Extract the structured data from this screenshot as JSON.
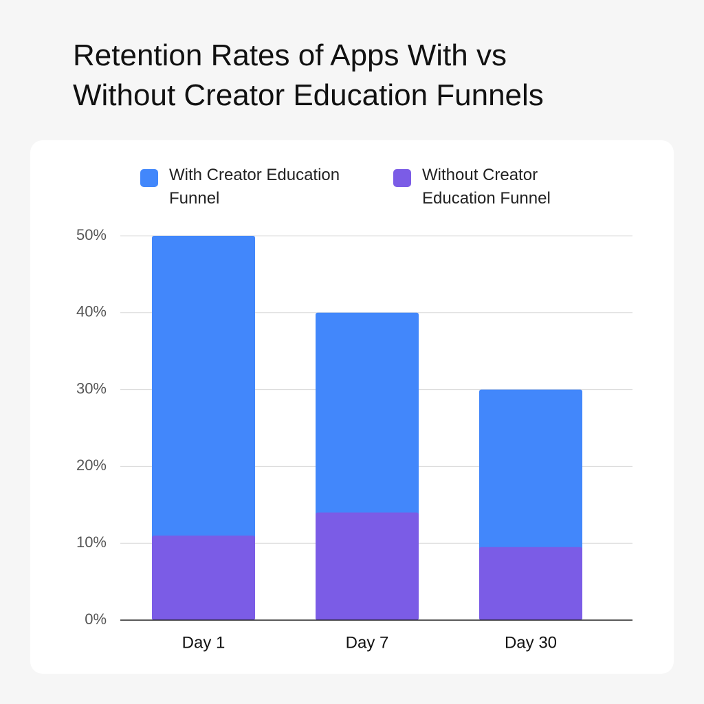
{
  "chart_data": {
    "type": "bar",
    "title": "Retention Rates of Apps With vs Without Creator Education Funnels",
    "categories": [
      "Day 1",
      "Day 7",
      "Day 30"
    ],
    "series": [
      {
        "name": "With Creator Education Funnel",
        "color": "#4287fb",
        "values": [
          50,
          40,
          30
        ]
      },
      {
        "name": "Without Creator Education Funnel",
        "color": "#7b5ce6",
        "values": [
          11,
          14,
          9.5
        ]
      }
    ],
    "ylim": [
      0,
      50
    ],
    "yticks": [
      {
        "value": 0,
        "label": "0%"
      },
      {
        "value": 10,
        "label": "10%"
      },
      {
        "value": 20,
        "label": "20%"
      },
      {
        "value": 30,
        "label": "30%"
      },
      {
        "value": 40,
        "label": "40%"
      },
      {
        "value": 50,
        "label": "50%"
      }
    ],
    "grid": true
  }
}
